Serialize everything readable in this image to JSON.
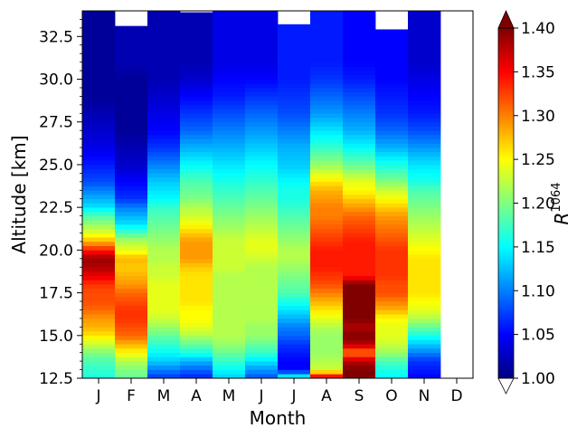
{
  "chart_data": {
    "type": "heatmap",
    "xlabel": "Month",
    "ylabel": "Altitude [km]",
    "colorbar_label": "R",
    "colorbar_label_superscript": "1064",
    "x_categories": [
      "J",
      "F",
      "M",
      "A",
      "M",
      "J",
      "J",
      "A",
      "S",
      "O",
      "N",
      "D"
    ],
    "y_range": [
      12.5,
      34
    ],
    "y_ticks": [
      "12.5",
      "15.0",
      "17.5",
      "20.0",
      "22.5",
      "25.0",
      "27.5",
      "30.0",
      "32.5"
    ],
    "y_tick_values": [
      12.5,
      15.0,
      17.5,
      20.0,
      22.5,
      25.0,
      27.5,
      30.0,
      32.5
    ],
    "colorbar_range": [
      1.0,
      1.4
    ],
    "colorbar_ticks": [
      "1.00",
      "1.05",
      "1.10",
      "1.15",
      "1.20",
      "1.25",
      "1.30",
      "1.35",
      "1.40"
    ],
    "colorbar_tick_values": [
      1.0,
      1.05,
      1.1,
      1.15,
      1.2,
      1.25,
      1.3,
      1.35,
      1.4
    ],
    "colormap": "jet",
    "colorbar_extend": "both",
    "altitude_profile_km": [
      12.5,
      13.0,
      13.5,
      14.0,
      14.5,
      15.0,
      15.5,
      16.0,
      16.5,
      17.0,
      17.5,
      18.0,
      18.5,
      19.0,
      19.5,
      20.0,
      20.5,
      21.0,
      21.5,
      22.0,
      22.5,
      23.0,
      23.5,
      24.0,
      25.0,
      26.0,
      27.0,
      28.0,
      29.0,
      30.0,
      31.0,
      32.0,
      33.0,
      34.0
    ],
    "months": [
      {
        "month": "J",
        "top_km": 34.0,
        "values": [
          1.16,
          1.17,
          1.18,
          1.2,
          1.23,
          1.26,
          1.28,
          1.29,
          1.31,
          1.32,
          1.32,
          1.33,
          1.36,
          1.38,
          1.39,
          1.34,
          1.28,
          1.24,
          1.21,
          1.18,
          1.14,
          1.12,
          1.1,
          1.08,
          1.06,
          1.04,
          1.03,
          1.02,
          1.01,
          1.01,
          1.01,
          1.01,
          1.01,
          1.01
        ]
      },
      {
        "month": "F",
        "top_km": 33.1,
        "values": [
          1.19,
          1.2,
          1.22,
          1.25,
          1.28,
          1.31,
          1.32,
          1.33,
          1.33,
          1.32,
          1.31,
          1.29,
          1.28,
          1.27,
          1.28,
          1.24,
          1.22,
          1.18,
          1.14,
          1.12,
          1.1,
          1.07,
          1.06,
          1.05,
          1.03,
          1.02,
          1.01,
          1.01,
          1.01,
          1.01,
          1.02,
          1.02,
          1.02,
          1.02
        ]
      },
      {
        "month": "M",
        "top_km": 34.0,
        "values": [
          1.07,
          1.1,
          1.13,
          1.15,
          1.17,
          1.19,
          1.21,
          1.23,
          1.24,
          1.24,
          1.24,
          1.24,
          1.23,
          1.23,
          1.22,
          1.22,
          1.21,
          1.2,
          1.19,
          1.18,
          1.17,
          1.15,
          1.14,
          1.13,
          1.1,
          1.07,
          1.05,
          1.04,
          1.03,
          1.02,
          1.02,
          1.02,
          1.02,
          1.02
        ]
      },
      {
        "month": "A",
        "top_km": 33.9,
        "values": [
          1.06,
          1.09,
          1.12,
          1.16,
          1.19,
          1.22,
          1.24,
          1.25,
          1.25,
          1.26,
          1.26,
          1.26,
          1.26,
          1.27,
          1.29,
          1.29,
          1.29,
          1.27,
          1.25,
          1.23,
          1.22,
          1.2,
          1.19,
          1.18,
          1.15,
          1.12,
          1.09,
          1.07,
          1.05,
          1.03,
          1.02,
          1.02,
          1.02,
          1.02
        ]
      },
      {
        "month": "M",
        "top_km": 34.0,
        "values": [
          1.13,
          1.15,
          1.17,
          1.19,
          1.21,
          1.22,
          1.22,
          1.22,
          1.22,
          1.22,
          1.22,
          1.22,
          1.22,
          1.23,
          1.23,
          1.23,
          1.23,
          1.22,
          1.21,
          1.2,
          1.19,
          1.18,
          1.17,
          1.16,
          1.14,
          1.12,
          1.1,
          1.08,
          1.06,
          1.05,
          1.04,
          1.04,
          1.04,
          1.04
        ]
      },
      {
        "month": "J",
        "top_km": 34.0,
        "values": [
          1.08,
          1.11,
          1.14,
          1.17,
          1.19,
          1.21,
          1.21,
          1.22,
          1.22,
          1.22,
          1.22,
          1.22,
          1.22,
          1.22,
          1.23,
          1.24,
          1.24,
          1.23,
          1.22,
          1.21,
          1.2,
          1.19,
          1.18,
          1.17,
          1.15,
          1.13,
          1.11,
          1.09,
          1.07,
          1.05,
          1.04,
          1.04,
          1.04,
          1.04
        ]
      },
      {
        "month": "J",
        "top_km": 33.2,
        "values": [
          1.17,
          1.05,
          1.05,
          1.06,
          1.07,
          1.09,
          1.1,
          1.12,
          1.14,
          1.16,
          1.18,
          1.19,
          1.2,
          1.21,
          1.22,
          1.22,
          1.21,
          1.2,
          1.19,
          1.18,
          1.17,
          1.16,
          1.16,
          1.15,
          1.13,
          1.12,
          1.1,
          1.08,
          1.07,
          1.06,
          1.06,
          1.06,
          1.06,
          1.06
        ]
      },
      {
        "month": "A",
        "top_km": 34.0,
        "values": [
          1.38,
          1.23,
          1.22,
          1.21,
          1.21,
          1.21,
          1.22,
          1.24,
          1.26,
          1.28,
          1.3,
          1.32,
          1.33,
          1.34,
          1.34,
          1.34,
          1.33,
          1.32,
          1.31,
          1.3,
          1.3,
          1.29,
          1.28,
          1.26,
          1.21,
          1.17,
          1.14,
          1.11,
          1.09,
          1.07,
          1.06,
          1.06,
          1.06,
          1.06
        ]
      },
      {
        "month": "S",
        "top_km": 34.0,
        "values": [
          1.4,
          1.4,
          1.38,
          1.3,
          1.38,
          1.4,
          1.38,
          1.4,
          1.4,
          1.4,
          1.4,
          1.4,
          1.34,
          1.34,
          1.34,
          1.34,
          1.34,
          1.33,
          1.32,
          1.31,
          1.29,
          1.27,
          1.25,
          1.24,
          1.19,
          1.15,
          1.12,
          1.1,
          1.08,
          1.06,
          1.05,
          1.05,
          1.05,
          1.05
        ]
      },
      {
        "month": "O",
        "top_km": 32.9,
        "values": [
          1.15,
          1.16,
          1.18,
          1.21,
          1.23,
          1.24,
          1.24,
          1.25,
          1.28,
          1.3,
          1.32,
          1.32,
          1.33,
          1.33,
          1.33,
          1.33,
          1.32,
          1.31,
          1.3,
          1.29,
          1.27,
          1.25,
          1.23,
          1.2,
          1.16,
          1.12,
          1.09,
          1.07,
          1.06,
          1.05,
          1.05,
          1.05,
          1.05,
          1.05
        ]
      },
      {
        "month": "N",
        "top_km": 34.0,
        "values": [
          1.05,
          1.06,
          1.07,
          1.1,
          1.13,
          1.16,
          1.19,
          1.22,
          1.24,
          1.25,
          1.26,
          1.26,
          1.26,
          1.26,
          1.26,
          1.25,
          1.24,
          1.23,
          1.22,
          1.21,
          1.2,
          1.19,
          1.18,
          1.16,
          1.14,
          1.11,
          1.08,
          1.06,
          1.05,
          1.04,
          1.03,
          1.03,
          1.03,
          1.03
        ]
      }
    ]
  }
}
